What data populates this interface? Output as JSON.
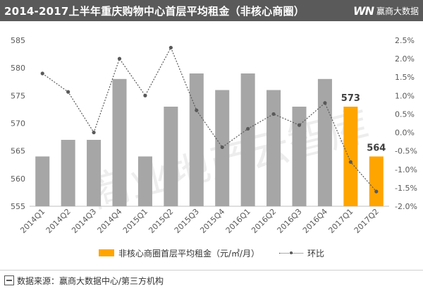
{
  "header": {
    "title": "2014-2017上半年重庆购物中心首层平均租金（非核心商圈）",
    "brand_logo": "WN",
    "brand_name": "赢商大数据"
  },
  "colors": {
    "bar": "#a6a6a6",
    "bar_highlight": "#ffa500",
    "line": "#595959",
    "header_bg": "#5a5a5a",
    "watermark": "#d9d9d9"
  },
  "watermark": "商业地产云智库",
  "chart_data": {
    "type": "bar",
    "categories": [
      "2014Q1",
      "2014Q2",
      "2014Q3",
      "2014Q4",
      "2015Q1",
      "2015Q2",
      "2015Q3",
      "2015Q4",
      "2016Q1",
      "2016Q2",
      "2016Q3",
      "2016Q4",
      "2017Q1",
      "2017Q2"
    ],
    "series": [
      {
        "name": "非核心商圈首层平均租金（元/㎡/月）",
        "type": "bar",
        "axis": "left",
        "values": [
          564,
          567,
          567,
          578,
          564,
          573,
          579,
          576,
          579,
          576,
          573,
          578,
          573,
          564
        ],
        "highlight_indices": [
          12,
          13
        ],
        "data_labels": {
          "12": "573",
          "13": "564"
        }
      },
      {
        "name": "环比",
        "type": "line",
        "axis": "right",
        "values": [
          1.6,
          1.1,
          0.0,
          2.0,
          1.0,
          2.3,
          0.6,
          -0.4,
          0.1,
          0.5,
          0.2,
          0.8,
          -0.8,
          -1.6
        ]
      }
    ],
    "y_left": {
      "min": 555,
      "max": 585,
      "ticks": [
        555,
        560,
        565,
        570,
        575,
        580,
        585
      ]
    },
    "y_right": {
      "min": -2.0,
      "max": 2.5,
      "ticks": [
        "2.5%",
        "2.0%",
        "1.5%",
        "1.0%",
        "0.5%",
        "0.0%",
        "-0.5%",
        "-1.0%",
        "-1.5%",
        "-2.0%"
      ]
    },
    "grid": false,
    "legend_position": "bottom"
  },
  "legend": {
    "bar_label": "非核心商圈首层平均租金（元/㎡/月）",
    "line_label": "环比"
  },
  "footer": {
    "source": "数据来源：赢商大数据中心/第三方机构"
  }
}
